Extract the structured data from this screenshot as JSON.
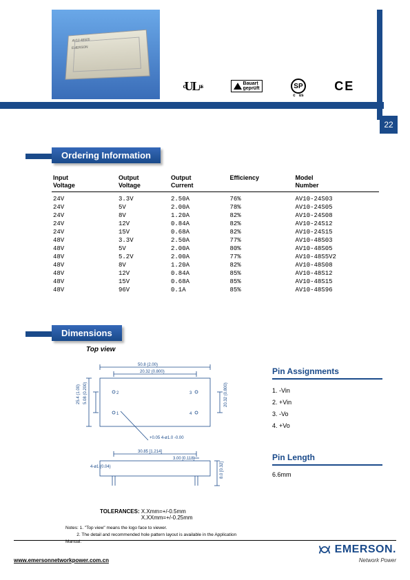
{
  "page_number": "22",
  "certifications": {
    "ul": "cULus",
    "csa": "SP",
    "ce": "CE"
  },
  "sections": {
    "ordering": "Ordering Information",
    "dimensions": "Dimensions",
    "top_view": "Top view",
    "pin_assignments": "Pin Assignments",
    "pin_length": "Pin Length"
  },
  "table": {
    "headers": [
      "Input\nVoltage",
      "Output\nVoltage",
      "Output\nCurrent",
      "Efficiency",
      "Model\nNumber"
    ],
    "col_widths": [
      "20%",
      "16%",
      "18%",
      "20%",
      "26%"
    ],
    "rows": [
      [
        "24V",
        "3.3V",
        "2.50A",
        "76%",
        "AV10-24S03"
      ],
      [
        "24V",
        "5V",
        "2.00A",
        "78%",
        "AV10-24S05"
      ],
      [
        "24V",
        "8V",
        "1.20A",
        "82%",
        "AV10-24S08"
      ],
      [
        "24V",
        "12V",
        "0.84A",
        "82%",
        "AV10-24S12"
      ],
      [
        "24V",
        "15V",
        "0.68A",
        "82%",
        "AV10-24S15"
      ],
      [
        "48V",
        "3.3V",
        "2.50A",
        "77%",
        "AV10-48S03"
      ],
      [
        "48V",
        "5V",
        "2.00A",
        "80%",
        "AV10-48S05"
      ],
      [
        "48V",
        "5.2V",
        "2.00A",
        "77%",
        "AV10-48S5V2"
      ],
      [
        "48V",
        "8V",
        "1.20A",
        "82%",
        "AV10-48S08"
      ],
      [
        "48V",
        "12V",
        "0.84A",
        "85%",
        "AV10-48S12"
      ],
      [
        "48V",
        "15V",
        "0.68A",
        "85%",
        "AV10-48S15"
      ],
      [
        "48V",
        "96V",
        "0.1A",
        "85%",
        "AV10-48S96"
      ]
    ]
  },
  "pins": [
    {
      "num": "1.",
      "label": "-Vin"
    },
    {
      "num": "2.",
      "label": "+Vin"
    },
    {
      "num": "3.",
      "label": "-Vo"
    },
    {
      "num": "4.",
      "label": "+Vo"
    }
  ],
  "pin_length_value": "6.6mm",
  "tolerances_label": "TOLERANCES:",
  "tolerances_text": "X.Xmm=+/-0.5mm\nX.XXmm=+/-0.25mm",
  "dim_labels": {
    "w_outer": "50.8 (2.00)",
    "w_inner": "20.32 (0.800)",
    "h_outer": "25.4 (1.00)",
    "h_inner": "5.08 (0.200)",
    "h_right": "20.32 (0.800)",
    "pin_dia": "+0.05\n4-ø1.0 -0.00",
    "bot_w": "30.85 [1.214]",
    "bot_pin": "4-ø1 (0.04)",
    "bot_sp": "3.00 [0.118]",
    "bot_h": "8.0 [0.32]"
  },
  "notes": {
    "n1_label": "Notes: 1. ",
    "n1": "\"Top view\" means the logo face to viewer.",
    "n2_label": "2. ",
    "n2": "The detail and recommended hole pattern layout is available in the Application Manual."
  },
  "footer_url": "www.emersonnetworkpower.com.cn",
  "brand": {
    "name": "EMERSON.",
    "sub": "Network Power"
  }
}
